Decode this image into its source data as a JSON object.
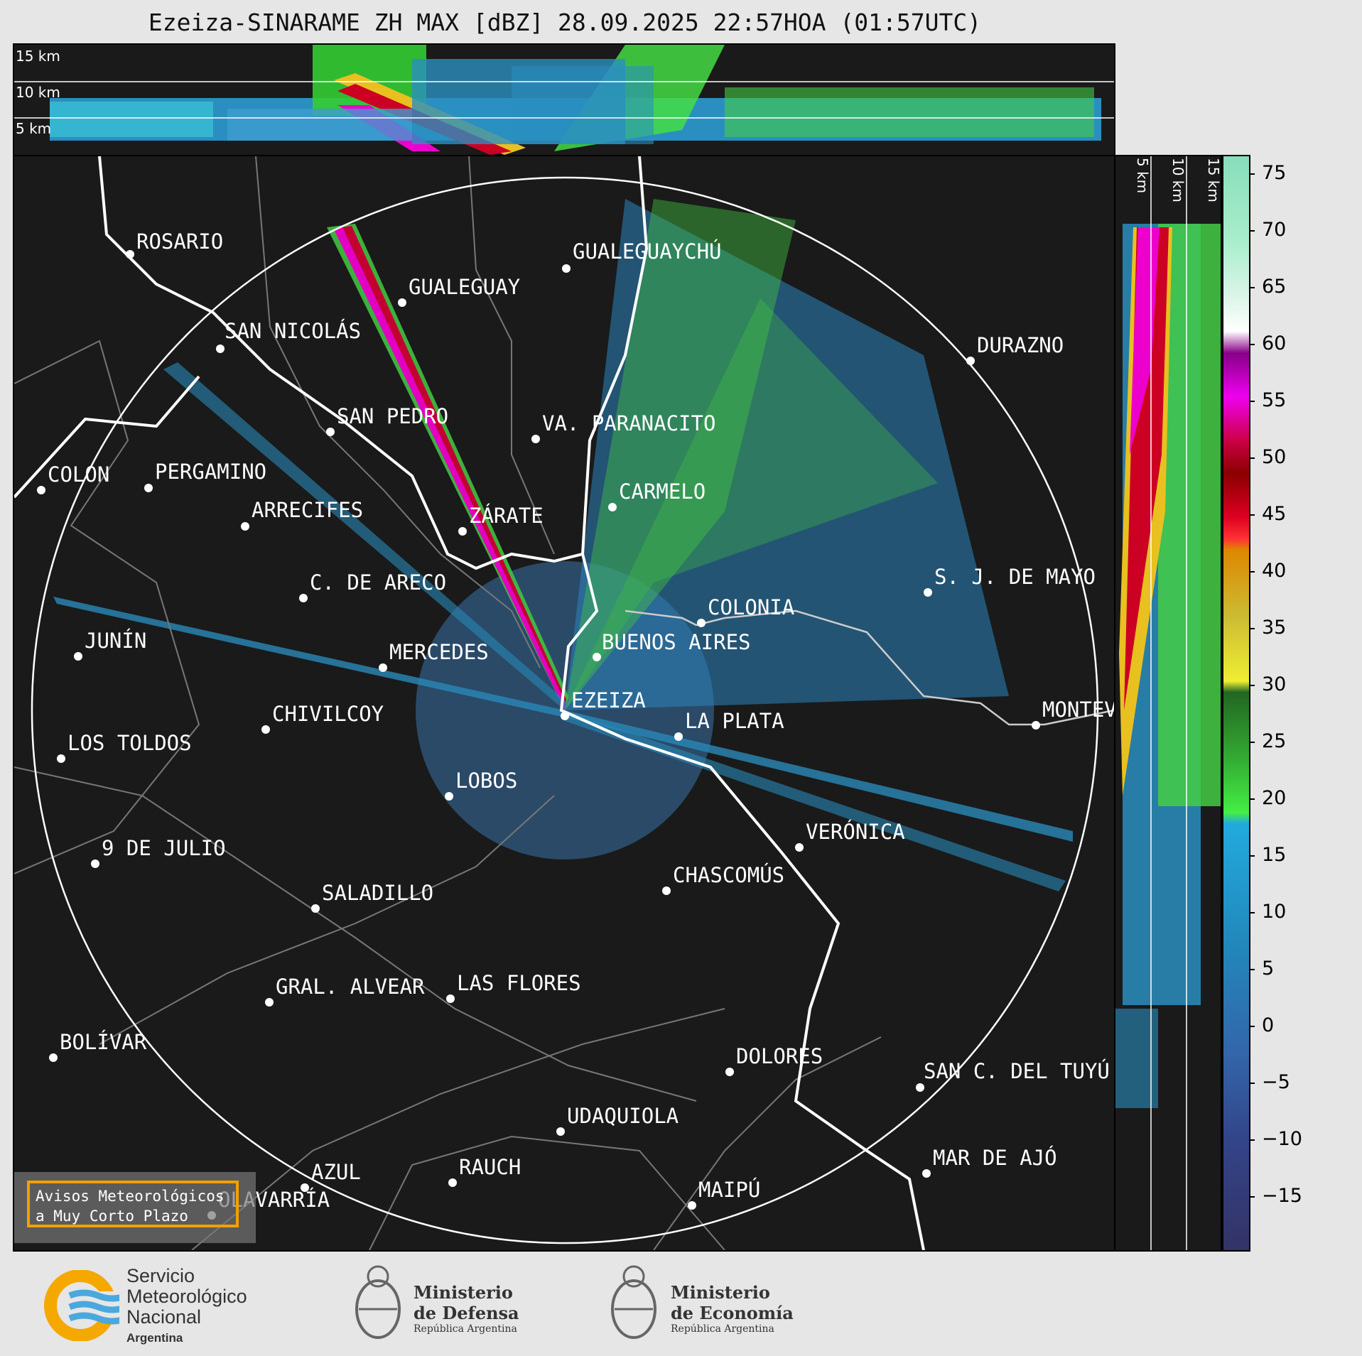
{
  "title": "Ezeiza-SINARAME ZH MAX [dBZ] 28.09.2025 22:57HOA (01:57UTC)",
  "altitude_labels": [
    "15 km",
    "10 km",
    "5 km"
  ],
  "cities": [
    {
      "name": "ROSARIO"
    },
    {
      "name": "GUALEGUAYCHÚ"
    },
    {
      "name": "GUALEGUAY"
    },
    {
      "name": "SAN NICOLÁS"
    },
    {
      "name": "DURAZNO"
    },
    {
      "name": "SAN PEDRO"
    },
    {
      "name": "VA. PARANACITO"
    },
    {
      "name": "COLON"
    },
    {
      "name": "PERGAMINO"
    },
    {
      "name": "CARMELO"
    },
    {
      "name": "ARRECIFES"
    },
    {
      "name": "ZÁRATE"
    },
    {
      "name": "C. DE ARECO"
    },
    {
      "name": "S. J. DE MAYO"
    },
    {
      "name": "COLONIA"
    },
    {
      "name": "JUNÍN"
    },
    {
      "name": "BUENOS AIRES"
    },
    {
      "name": "MERCEDES"
    },
    {
      "name": "EZEIZA"
    },
    {
      "name": "MONTEVIDEO"
    },
    {
      "name": "CHIVILCOY"
    },
    {
      "name": "LA PLATA"
    },
    {
      "name": "LOS TOLDOS"
    },
    {
      "name": "LOBOS"
    },
    {
      "name": "VERÓNICA"
    },
    {
      "name": "9 DE JULIO"
    },
    {
      "name": "CHASCOMÚS"
    },
    {
      "name": "SALADILLO"
    },
    {
      "name": "GRAL. ALVEAR"
    },
    {
      "name": "LAS FLORES"
    },
    {
      "name": "BOLÍVAR"
    },
    {
      "name": "DOLORES"
    },
    {
      "name": "SAN C. DEL TUYÚ"
    },
    {
      "name": "UDAQUIOLA"
    },
    {
      "name": "MAR DE AJÓ"
    },
    {
      "name": "RAUCH"
    },
    {
      "name": "AZUL"
    },
    {
      "name": "OLAVARRÍA"
    },
    {
      "name": "MAIPÚ"
    }
  ],
  "colorbar": {
    "unit": "dBZ",
    "ticks": [
      "75",
      "70",
      "65",
      "60",
      "55",
      "50",
      "45",
      "40",
      "35",
      "30",
      "25",
      "20",
      "15",
      "10",
      "5",
      "0",
      "−5",
      "−10",
      "−15"
    ],
    "range": [
      -20,
      77
    ]
  },
  "avisos": {
    "line1": "Avisos Meteorológicos",
    "line2": "a Muy Corto Plazo"
  },
  "footer": {
    "smn_line1": "Servicio",
    "smn_line2": "Meteorológico",
    "smn_line3": "Nacional",
    "smn_line4": "Argentina",
    "defensa_line1": "Ministerio",
    "defensa_line2": "de Defensa",
    "defensa_line3": "República Argentina",
    "economia_line1": "Ministerio",
    "economia_line2": "de Economía",
    "economia_line3": "República Argentina"
  }
}
